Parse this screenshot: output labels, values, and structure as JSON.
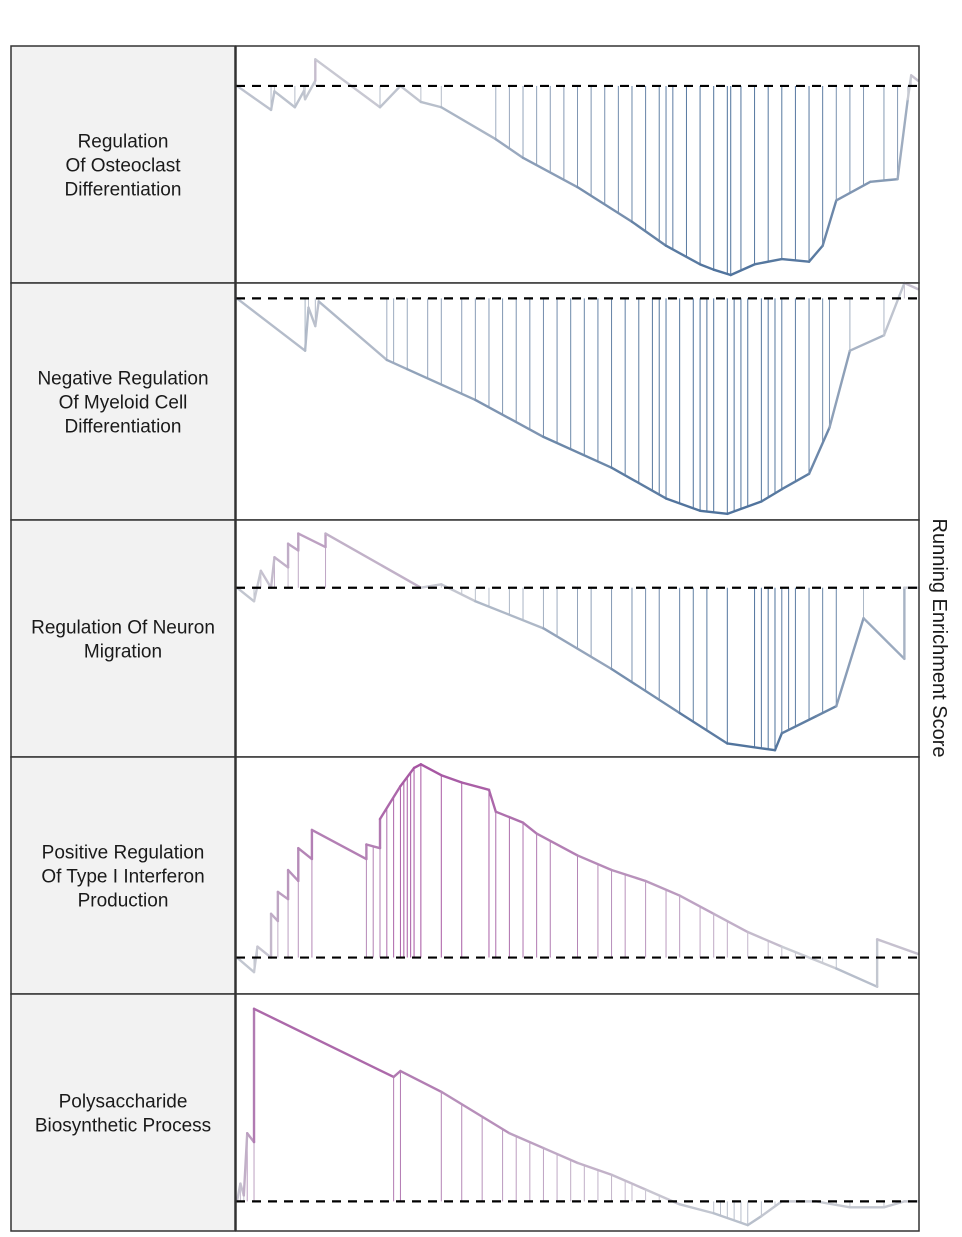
{
  "chart_data": {
    "type": "line",
    "y_axis_title": "Running Enrichment Score",
    "baseline": 0,
    "x_range": [
      0,
      1
    ],
    "colors": {
      "negative": "#4a6f9a",
      "positive": "#a550a0",
      "neutral": "#c9cbd3",
      "baseline": "#000000"
    },
    "panels": [
      {
        "name": "Regulation\nOf Osteoclast\nDifferentiation",
        "ylim": [
          -0.74,
          0.15
        ],
        "scores": [
          [
            0,
            0.0
          ],
          [
            0.05,
            -0.09
          ],
          [
            0.055,
            -0.02
          ],
          [
            0.085,
            -0.08
          ],
          [
            0.098,
            -0.02
          ],
          [
            0.1,
            -0.05
          ],
          [
            0.115,
            0.02
          ],
          [
            0.115,
            0.1
          ],
          [
            0.21,
            -0.08
          ],
          [
            0.24,
            0.0
          ],
          [
            0.27,
            -0.06
          ],
          [
            0.3,
            -0.08
          ],
          [
            0.38,
            -0.2
          ],
          [
            0.42,
            -0.27
          ],
          [
            0.5,
            -0.38
          ],
          [
            0.58,
            -0.51
          ],
          [
            0.63,
            -0.6
          ],
          [
            0.68,
            -0.67
          ],
          [
            0.7,
            -0.69
          ],
          [
            0.725,
            -0.71
          ],
          [
            0.76,
            -0.67
          ],
          [
            0.8,
            -0.65
          ],
          [
            0.84,
            -0.66
          ],
          [
            0.86,
            -0.6
          ],
          [
            0.88,
            -0.43
          ],
          [
            0.93,
            -0.36
          ],
          [
            0.97,
            -0.35
          ],
          [
            0.985,
            -0.05
          ],
          [
            0.99,
            0.04
          ],
          [
            1.0,
            0.02
          ]
        ],
        "hits": [
          0.05,
          0.055,
          0.085,
          0.098,
          0.1,
          0.115,
          0.21,
          0.24,
          0.27,
          0.3,
          0.38,
          0.4,
          0.42,
          0.44,
          0.46,
          0.48,
          0.5,
          0.52,
          0.54,
          0.56,
          0.58,
          0.6,
          0.62,
          0.63,
          0.64,
          0.66,
          0.68,
          0.7,
          0.72,
          0.725,
          0.74,
          0.76,
          0.78,
          0.8,
          0.82,
          0.84,
          0.86,
          0.88,
          0.9,
          0.92,
          0.95,
          0.97,
          0.985,
          0.99
        ]
      },
      {
        "name": "Negative Regulation\nOf Myeloid Cell\nDifferentiation",
        "ylim": [
          -0.72,
          0.05
        ],
        "scores": [
          [
            0,
            0.0
          ],
          [
            0.1,
            -0.17
          ],
          [
            0.105,
            -0.03
          ],
          [
            0.115,
            -0.09
          ],
          [
            0.12,
            -0.01
          ],
          [
            0.22,
            -0.2
          ],
          [
            0.25,
            -0.23
          ],
          [
            0.35,
            -0.33
          ],
          [
            0.45,
            -0.45
          ],
          [
            0.55,
            -0.55
          ],
          [
            0.63,
            -0.65
          ],
          [
            0.68,
            -0.69
          ],
          [
            0.72,
            -0.7
          ],
          [
            0.77,
            -0.66
          ],
          [
            0.8,
            -0.62
          ],
          [
            0.84,
            -0.57
          ],
          [
            0.87,
            -0.42
          ],
          [
            0.9,
            -0.17
          ],
          [
            0.95,
            -0.12
          ],
          [
            0.98,
            0.05
          ],
          [
            1.0,
            0.03
          ]
        ],
        "hits": [
          0.1,
          0.105,
          0.115,
          0.12,
          0.22,
          0.23,
          0.25,
          0.28,
          0.3,
          0.33,
          0.35,
          0.37,
          0.39,
          0.41,
          0.43,
          0.45,
          0.47,
          0.49,
          0.51,
          0.53,
          0.55,
          0.57,
          0.59,
          0.61,
          0.62,
          0.63,
          0.65,
          0.67,
          0.68,
          0.69,
          0.7,
          0.72,
          0.73,
          0.74,
          0.75,
          0.77,
          0.78,
          0.79,
          0.8,
          0.82,
          0.84,
          0.86,
          0.87,
          0.9,
          0.95,
          0.98
        ]
      },
      {
        "name": "Regulation Of Neuron\nMigration",
        "ylim": [
          -0.5,
          0.2
        ],
        "scores": [
          [
            0,
            0.0
          ],
          [
            0.025,
            -0.04
          ],
          [
            0.035,
            0.05
          ],
          [
            0.05,
            0.0
          ],
          [
            0.055,
            0.09
          ],
          [
            0.075,
            0.06
          ],
          [
            0.075,
            0.13
          ],
          [
            0.09,
            0.11
          ],
          [
            0.09,
            0.16
          ],
          [
            0.13,
            0.12
          ],
          [
            0.13,
            0.16
          ],
          [
            0.27,
            0.0
          ],
          [
            0.3,
            0.01
          ],
          [
            0.35,
            -0.04
          ],
          [
            0.45,
            -0.12
          ],
          [
            0.55,
            -0.24
          ],
          [
            0.65,
            -0.37
          ],
          [
            0.72,
            -0.46
          ],
          [
            0.79,
            -0.48
          ],
          [
            0.8,
            -0.43
          ],
          [
            0.85,
            -0.38
          ],
          [
            0.88,
            -0.35
          ],
          [
            0.92,
            -0.09
          ],
          [
            0.98,
            -0.21
          ],
          [
            0.98,
            0.0
          ],
          [
            1.0,
            0.0
          ]
        ],
        "hits": [
          0.025,
          0.035,
          0.05,
          0.055,
          0.075,
          0.09,
          0.13,
          0.27,
          0.28,
          0.3,
          0.31,
          0.33,
          0.35,
          0.37,
          0.4,
          0.42,
          0.45,
          0.47,
          0.5,
          0.52,
          0.55,
          0.58,
          0.6,
          0.62,
          0.65,
          0.67,
          0.69,
          0.72,
          0.76,
          0.77,
          0.78,
          0.79,
          0.8,
          0.81,
          0.82,
          0.84,
          0.86,
          0.88,
          0.92,
          0.98
        ]
      },
      {
        "name": "Positive Regulation\nOf Type I Interferon\nProduction",
        "ylim": [
          -0.1,
          0.55
        ],
        "scores": [
          [
            0,
            0.0
          ],
          [
            0.025,
            -0.04
          ],
          [
            0.03,
            0.03
          ],
          [
            0.05,
            0.0
          ],
          [
            0.05,
            0.12
          ],
          [
            0.06,
            0.1
          ],
          [
            0.06,
            0.18
          ],
          [
            0.075,
            0.16
          ],
          [
            0.075,
            0.24
          ],
          [
            0.09,
            0.21
          ],
          [
            0.09,
            0.3
          ],
          [
            0.11,
            0.27
          ],
          [
            0.11,
            0.35
          ],
          [
            0.19,
            0.27
          ],
          [
            0.19,
            0.31
          ],
          [
            0.21,
            0.3
          ],
          [
            0.21,
            0.38
          ],
          [
            0.24,
            0.47
          ],
          [
            0.26,
            0.52
          ],
          [
            0.27,
            0.53
          ],
          [
            0.3,
            0.5
          ],
          [
            0.33,
            0.48
          ],
          [
            0.37,
            0.46
          ],
          [
            0.38,
            0.4
          ],
          [
            0.42,
            0.37
          ],
          [
            0.44,
            0.34
          ],
          [
            0.5,
            0.28
          ],
          [
            0.55,
            0.24
          ],
          [
            0.6,
            0.21
          ],
          [
            0.65,
            0.17
          ],
          [
            0.7,
            0.12
          ],
          [
            0.75,
            0.07
          ],
          [
            0.8,
            0.03
          ],
          [
            0.88,
            -0.03
          ],
          [
            0.94,
            -0.08
          ],
          [
            0.94,
            0.05
          ],
          [
            1.0,
            0.01
          ]
        ],
        "hits": [
          0.025,
          0.03,
          0.05,
          0.06,
          0.075,
          0.09,
          0.11,
          0.19,
          0.2,
          0.21,
          0.22,
          0.23,
          0.24,
          0.245,
          0.25,
          0.255,
          0.26,
          0.27,
          0.3,
          0.33,
          0.37,
          0.38,
          0.4,
          0.42,
          0.44,
          0.46,
          0.5,
          0.53,
          0.55,
          0.57,
          0.6,
          0.63,
          0.65,
          0.68,
          0.7,
          0.72,
          0.75,
          0.78,
          0.8,
          0.82,
          0.86,
          0.88,
          0.94
        ]
      },
      {
        "name": "Polysaccharide\nBiosynthetic Process",
        "ylim": [
          -0.1,
          0.7
        ],
        "scores": [
          [
            0,
            0.0
          ],
          [
            0.005,
            0.06
          ],
          [
            0.01,
            0.02
          ],
          [
            0.015,
            0.23
          ],
          [
            0.025,
            0.2
          ],
          [
            0.025,
            0.65
          ],
          [
            0.23,
            0.42
          ],
          [
            0.24,
            0.44
          ],
          [
            0.3,
            0.37
          ],
          [
            0.4,
            0.23
          ],
          [
            0.45,
            0.18
          ],
          [
            0.5,
            0.13
          ],
          [
            0.55,
            0.09
          ],
          [
            0.6,
            0.04
          ],
          [
            0.65,
            -0.01
          ],
          [
            0.7,
            -0.04
          ],
          [
            0.75,
            -0.08
          ],
          [
            0.77,
            -0.05
          ],
          [
            0.8,
            0.0
          ],
          [
            0.85,
            0.0
          ],
          [
            0.9,
            -0.02
          ],
          [
            0.95,
            -0.02
          ],
          [
            0.98,
            0.0
          ],
          [
            1.0,
            0.0
          ]
        ],
        "hits": [
          0.005,
          0.01,
          0.015,
          0.025,
          0.23,
          0.24,
          0.3,
          0.33,
          0.36,
          0.39,
          0.41,
          0.43,
          0.45,
          0.47,
          0.49,
          0.51,
          0.53,
          0.55,
          0.57,
          0.58,
          0.6,
          0.62,
          0.64,
          0.7,
          0.71,
          0.72,
          0.73,
          0.74,
          0.75,
          0.77,
          0.79,
          0.8,
          0.82,
          0.84,
          0.86,
          0.88,
          0.9,
          0.95,
          0.98
        ]
      }
    ]
  }
}
